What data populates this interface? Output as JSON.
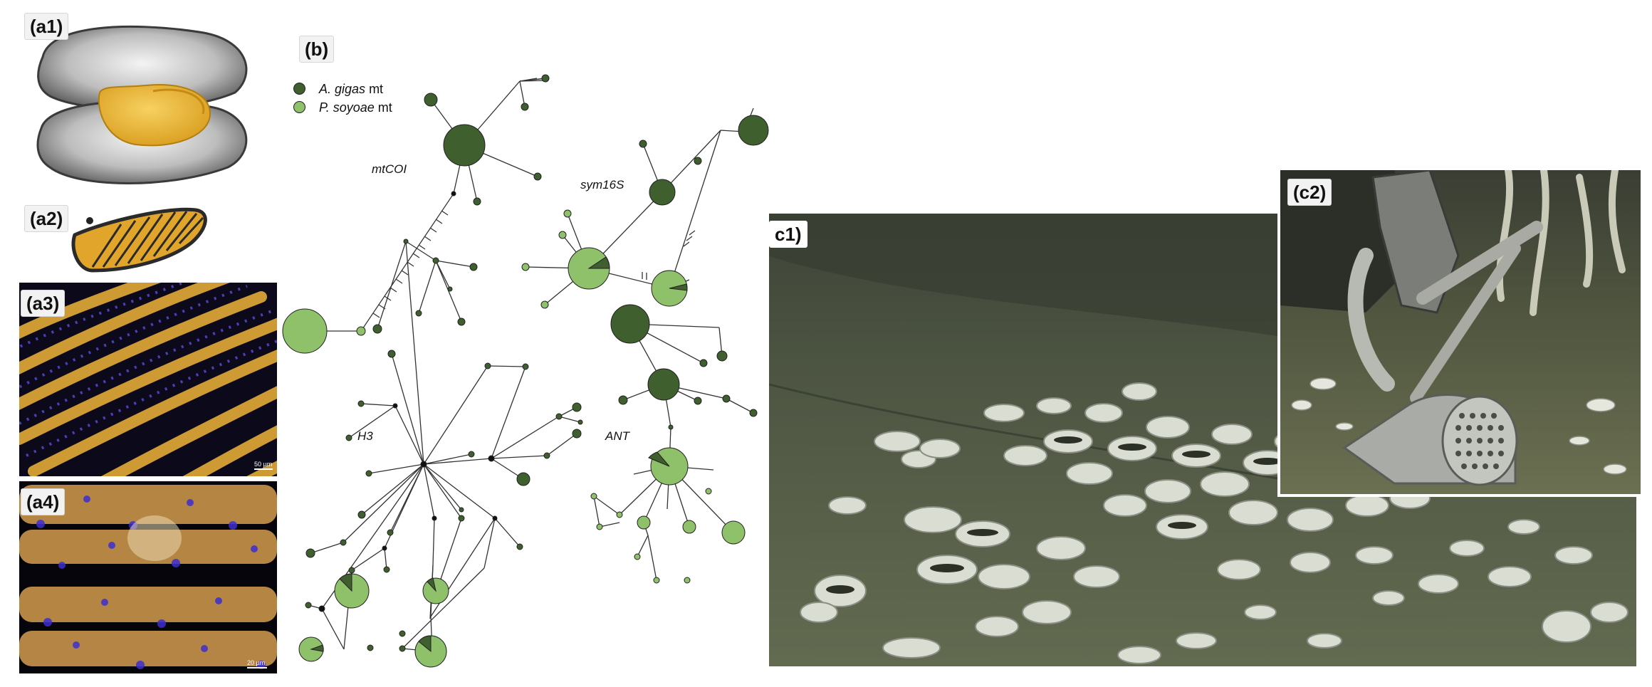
{
  "panels": {
    "a1": {
      "label": "(a1)"
    },
    "a2": {
      "label": "(a2)"
    },
    "a3": {
      "label": "(a3)",
      "scale": "50 µm"
    },
    "a4": {
      "label": "(a4)",
      "scale": "20 µm"
    },
    "b": {
      "label": "(b)",
      "legend": [
        {
          "species": "A. gigas",
          "suffix": " mt",
          "color": "#3f5f2e"
        },
        {
          "species": "P. soyoae",
          "suffix": " mt",
          "color": "#8fc06a"
        }
      ],
      "network_labels": {
        "mtcoi": "mtCOI",
        "sym16s": "sym16S",
        "h3": "H3",
        "ant": "ANT"
      }
    },
    "c1": {
      "label": "c1)"
    },
    "c2": {
      "label": "(c2)"
    }
  },
  "colors": {
    "dark_green": "#3f5f2e",
    "light_green": "#8fc06a",
    "gold": "#e8b430",
    "seafloor": "#5a6149"
  }
}
